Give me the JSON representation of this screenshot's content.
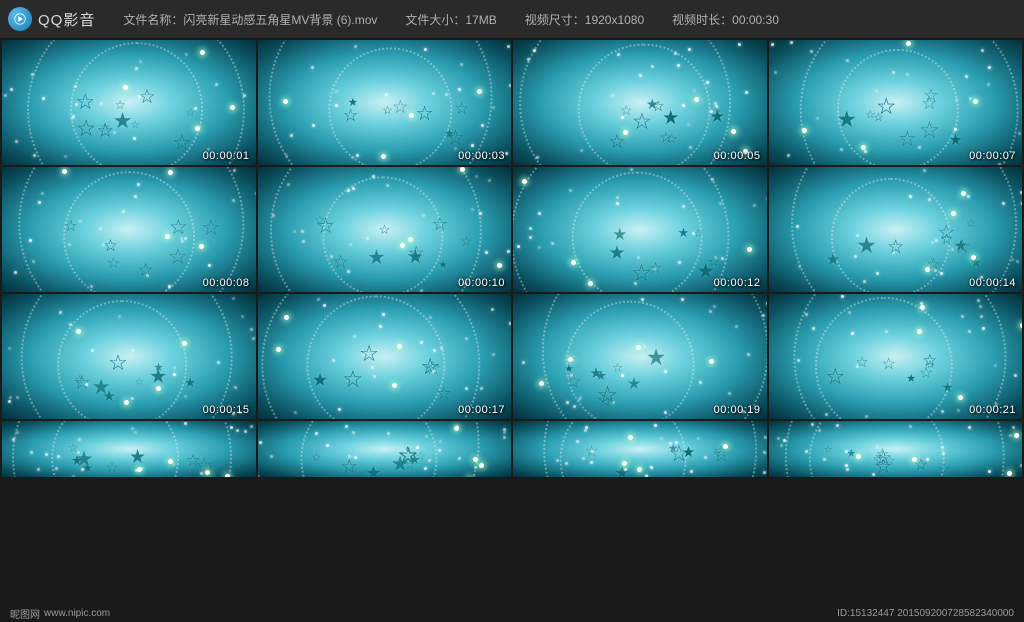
{
  "app": {
    "name": "QQ影音",
    "logo_bg_start": "#5ab8e8",
    "logo_bg_end": "#1a7fb8"
  },
  "meta": {
    "filename_label": "文件名称：",
    "filename_value": "闪亮新星动感五角星MV背景 (6).mov",
    "filesize_label": "文件大小：",
    "filesize_value": "17MB",
    "dimensions_label": "视频尺寸：",
    "dimensions_value": "1920x1080",
    "duration_label": "视频时长：",
    "duration_value": "00:00:30"
  },
  "thumbnails": {
    "bg_center": "#c8f0f5",
    "bg_mid": "#6ad0dd",
    "bg_outer": "#2a9db0",
    "bg_edge": "#0a5060",
    "star_color": "#0a6b75",
    "dot_color": "#ffffff",
    "rows": [
      {
        "timestamps": [
          "00:00:01",
          "00:00:03",
          "00:00:05",
          "00:00:07"
        ],
        "full": true
      },
      {
        "timestamps": [
          "00:00:08",
          "00:00:10",
          "00:00:12",
          "00:00:14"
        ],
        "full": true
      },
      {
        "timestamps": [
          "00:00:15",
          "00:00:17",
          "00:00:19",
          "00:00:21"
        ],
        "full": true
      },
      {
        "timestamps": [
          "",
          "",
          "",
          ""
        ],
        "full": false
      }
    ]
  },
  "footer": {
    "site_name": "昵图网",
    "site_url": "www.nipic.com",
    "id_text": "ID:15132447  201509200728582340000"
  }
}
